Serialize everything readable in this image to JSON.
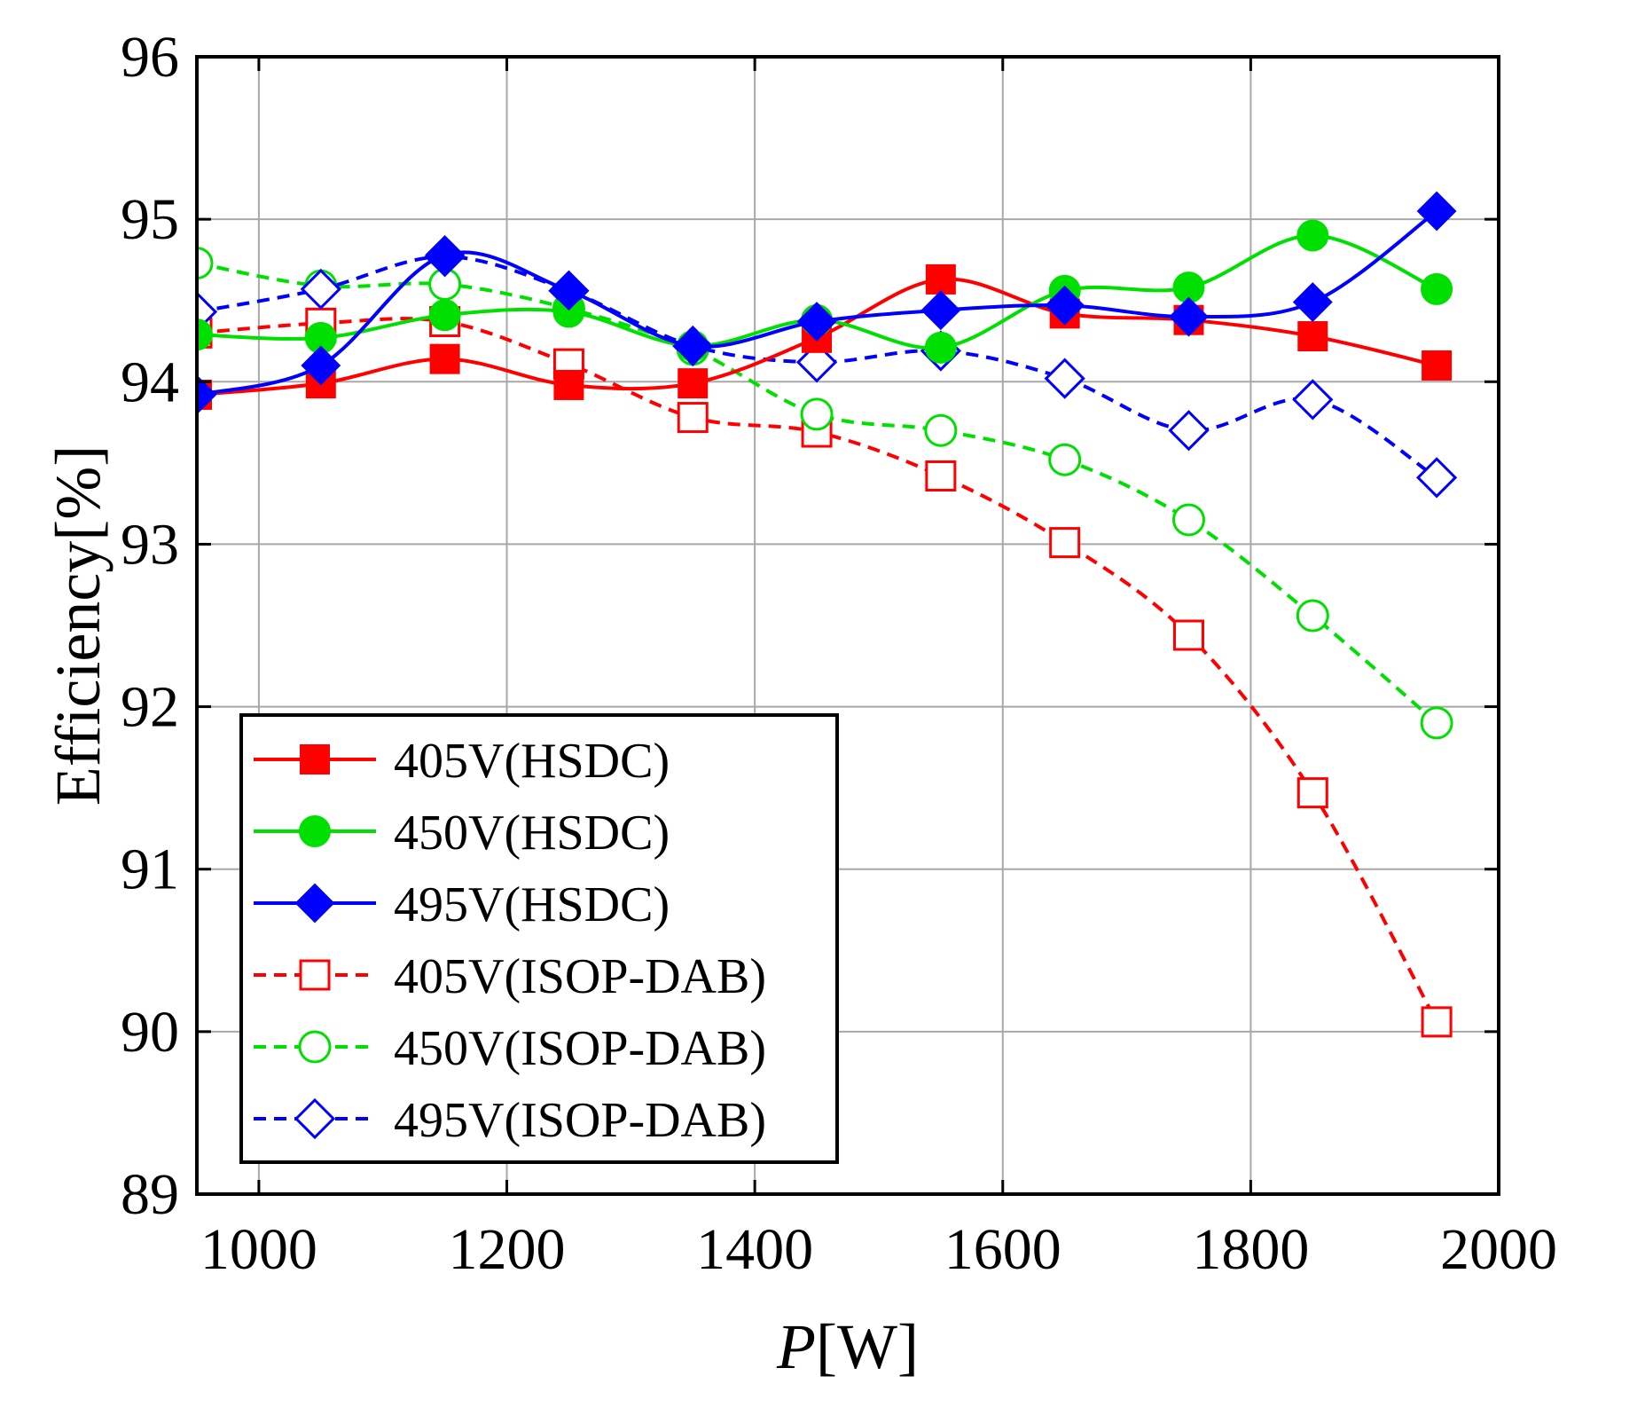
{
  "chart_data": {
    "type": "line",
    "title": "",
    "xlabel_italic": "P",
    "xlabel_unit": "[W]",
    "ylabel": "Efficiency[%]",
    "xlim": [
      950,
      2000
    ],
    "ylim": [
      89,
      96
    ],
    "x_ticks": [
      1000,
      1200,
      1400,
      1600,
      1800,
      2000
    ],
    "y_ticks": [
      89,
      90,
      91,
      92,
      93,
      94,
      95,
      96
    ],
    "grid": true,
    "legend_position": "bottom-left",
    "x": [
      950,
      1050,
      1150,
      1250,
      1350,
      1450,
      1550,
      1650,
      1750,
      1850,
      1950
    ],
    "series": [
      {
        "name": "405V(HSDC)",
        "color": "#ff0000",
        "dash": false,
        "marker": "square",
        "filled": true,
        "values": [
          93.92,
          93.99,
          94.14,
          93.98,
          93.99,
          94.27,
          94.63,
          94.42,
          94.38,
          94.28,
          94.1
        ]
      },
      {
        "name": "450V(HSDC)",
        "color": "#00e000",
        "dash": false,
        "marker": "circle",
        "filled": true,
        "values": [
          94.29,
          94.27,
          94.41,
          94.43,
          94.22,
          94.38,
          94.21,
          94.56,
          94.58,
          94.9,
          94.57
        ]
      },
      {
        "name": "495V(HSDC)",
        "color": "#0000ff",
        "dash": false,
        "marker": "diamond",
        "filled": true,
        "values": [
          93.92,
          94.1,
          94.78,
          94.56,
          94.22,
          94.37,
          94.44,
          94.47,
          94.4,
          94.49,
          95.05
        ]
      },
      {
        "name": "405V(ISOP-DAB)",
        "color": "#ff0000",
        "dash": true,
        "marker": "square",
        "filled": false,
        "values": [
          94.3,
          94.36,
          94.37,
          94.11,
          93.78,
          93.69,
          93.42,
          93.01,
          92.44,
          91.47,
          90.06
        ]
      },
      {
        "name": "450V(ISOP-DAB)",
        "color": "#00e000",
        "dash": true,
        "marker": "circle",
        "filled": false,
        "values": [
          94.73,
          94.59,
          94.6,
          94.45,
          94.2,
          93.8,
          93.7,
          93.52,
          93.15,
          92.56,
          91.9
        ]
      },
      {
        "name": "495V(ISOP-DAB)",
        "color": "#0000ff",
        "dash": true,
        "marker": "diamond",
        "filled": false,
        "values": [
          94.43,
          94.57,
          94.77,
          94.56,
          94.22,
          94.12,
          94.19,
          94.02,
          93.7,
          93.89,
          93.41
        ]
      }
    ]
  }
}
